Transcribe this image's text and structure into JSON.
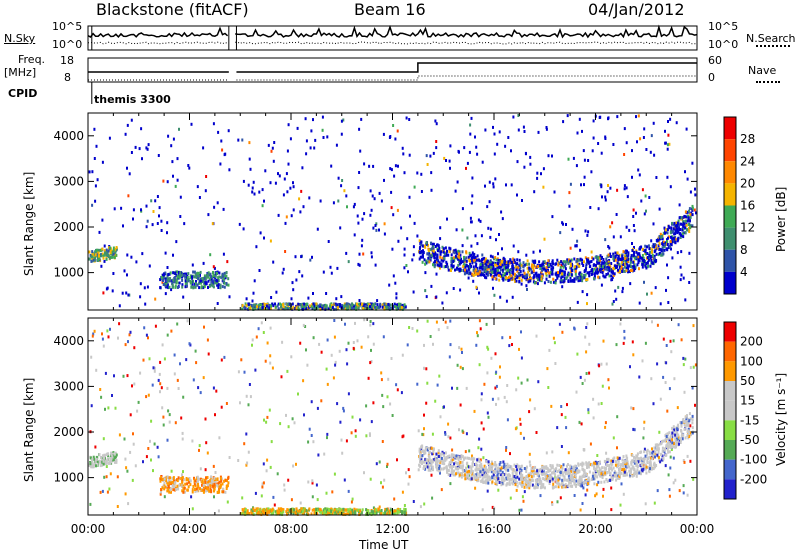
{
  "header": {
    "radar": "Blackstone (fitACF)",
    "beam": "Beam 16",
    "date": "04/Jan/2012"
  },
  "panels": {
    "nsky_label": "N.Sky",
    "nsearch_label": "N.Search",
    "freq_label_line1": "Freq.",
    "freq_label_line2": "[MHz]",
    "nave_label": "Nave",
    "cpid_label": "CPID",
    "cpid_value": "themis 3300",
    "noise_left_ticks": [
      "10^5",
      "10^0"
    ],
    "noise_right_ticks": [
      "10^5",
      "10^0"
    ],
    "freq_left_ticks": [
      "18",
      "8"
    ],
    "nave_right_ticks": [
      "60",
      "0"
    ]
  },
  "colors": {
    "power_scale": [
      "#0000cc",
      "#2f54a8",
      "#3f8f6f",
      "#3faa55",
      "#f5b400",
      "#ff8800",
      "#ff4400",
      "#ee0000"
    ],
    "velocity_scale": [
      "#2222cc",
      "#4466cc",
      "#55aa55",
      "#88dd44",
      "#c8c8c8",
      "#c8c8c8",
      "#ff9900",
      "#ff6600",
      "#ee0000"
    ]
  },
  "chart_data": [
    {
      "type": "heatmap",
      "title": "",
      "xlabel": "",
      "ylabel": "Slant Range [km]",
      "x_tick_labels": [
        "00:00",
        "04:00",
        "08:00",
        "12:00",
        "16:00",
        "20:00",
        "00:00"
      ],
      "y_tick_labels": [
        "1000",
        "2000",
        "3000",
        "4000"
      ],
      "ylim": [
        180,
        4500
      ],
      "x_hours": [
        0,
        24
      ],
      "colorbar": {
        "label": "Power [dB]",
        "ticks": [
          "4",
          "8",
          "12",
          "16",
          "20",
          "24",
          "28"
        ],
        "range": [
          0,
          30
        ]
      }
    },
    {
      "type": "heatmap",
      "title": "",
      "xlabel": "Time UT",
      "ylabel": "Slant Range [km]",
      "x_tick_labels": [
        "00:00",
        "04:00",
        "08:00",
        "12:00",
        "16:00",
        "20:00",
        "00:00"
      ],
      "y_tick_labels": [
        "1000",
        "2000",
        "3000",
        "4000"
      ],
      "ylim": [
        180,
        4500
      ],
      "x_hours": [
        0,
        24
      ],
      "colorbar": {
        "label": "Velocity [m s⁻¹]",
        "ticks": [
          "200",
          "100",
          "50",
          "15",
          "-15",
          "-50",
          "-100",
          "-200"
        ]
      }
    }
  ]
}
